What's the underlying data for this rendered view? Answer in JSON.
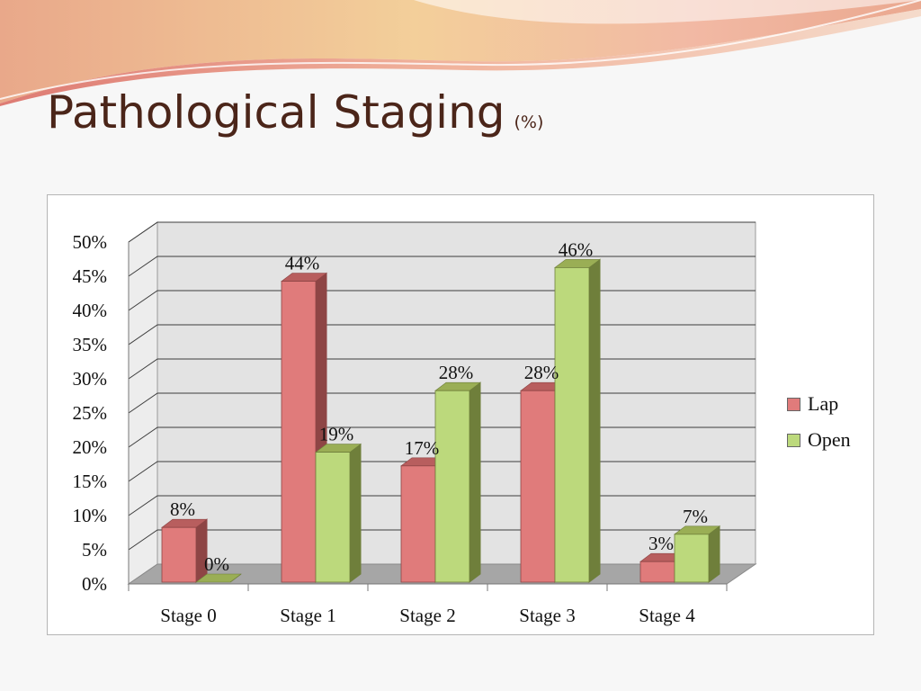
{
  "slide": {
    "title": "Pathological Staging",
    "title_suffix": "(%)"
  },
  "colors": {
    "lap_front": "#e07b7b",
    "lap_side": "#8e4545",
    "lap_top": "#b85e5e",
    "open_front": "#bcd97c",
    "open_side": "#6f7f3b",
    "open_top": "#9aae55",
    "wall": "#e3e3e3",
    "floor": "#a6a6a6",
    "title_color": "#4b2519"
  },
  "chart_data": {
    "type": "bar",
    "categories": [
      "Stage 0",
      "Stage 1",
      "Stage 2",
      "Stage 3",
      "Stage 4"
    ],
    "series": [
      {
        "name": "Lap",
        "values": [
          8,
          44,
          17,
          28,
          3
        ],
        "labels": [
          "8%",
          "44%",
          "17%",
          "28%",
          "3%"
        ]
      },
      {
        "name": "Open",
        "values": [
          0,
          19,
          28,
          46,
          7
        ],
        "labels": [
          "0%",
          "19%",
          "28%",
          "46%",
          "7%"
        ]
      }
    ],
    "y_ticks": [
      "0%",
      "5%",
      "10%",
      "15%",
      "20%",
      "25%",
      "30%",
      "35%",
      "40%",
      "45%",
      "50%"
    ],
    "ylim": [
      0,
      50
    ],
    "y_step": 5,
    "grid": true,
    "legend_position": "right",
    "style": "3d-clustered-column"
  }
}
